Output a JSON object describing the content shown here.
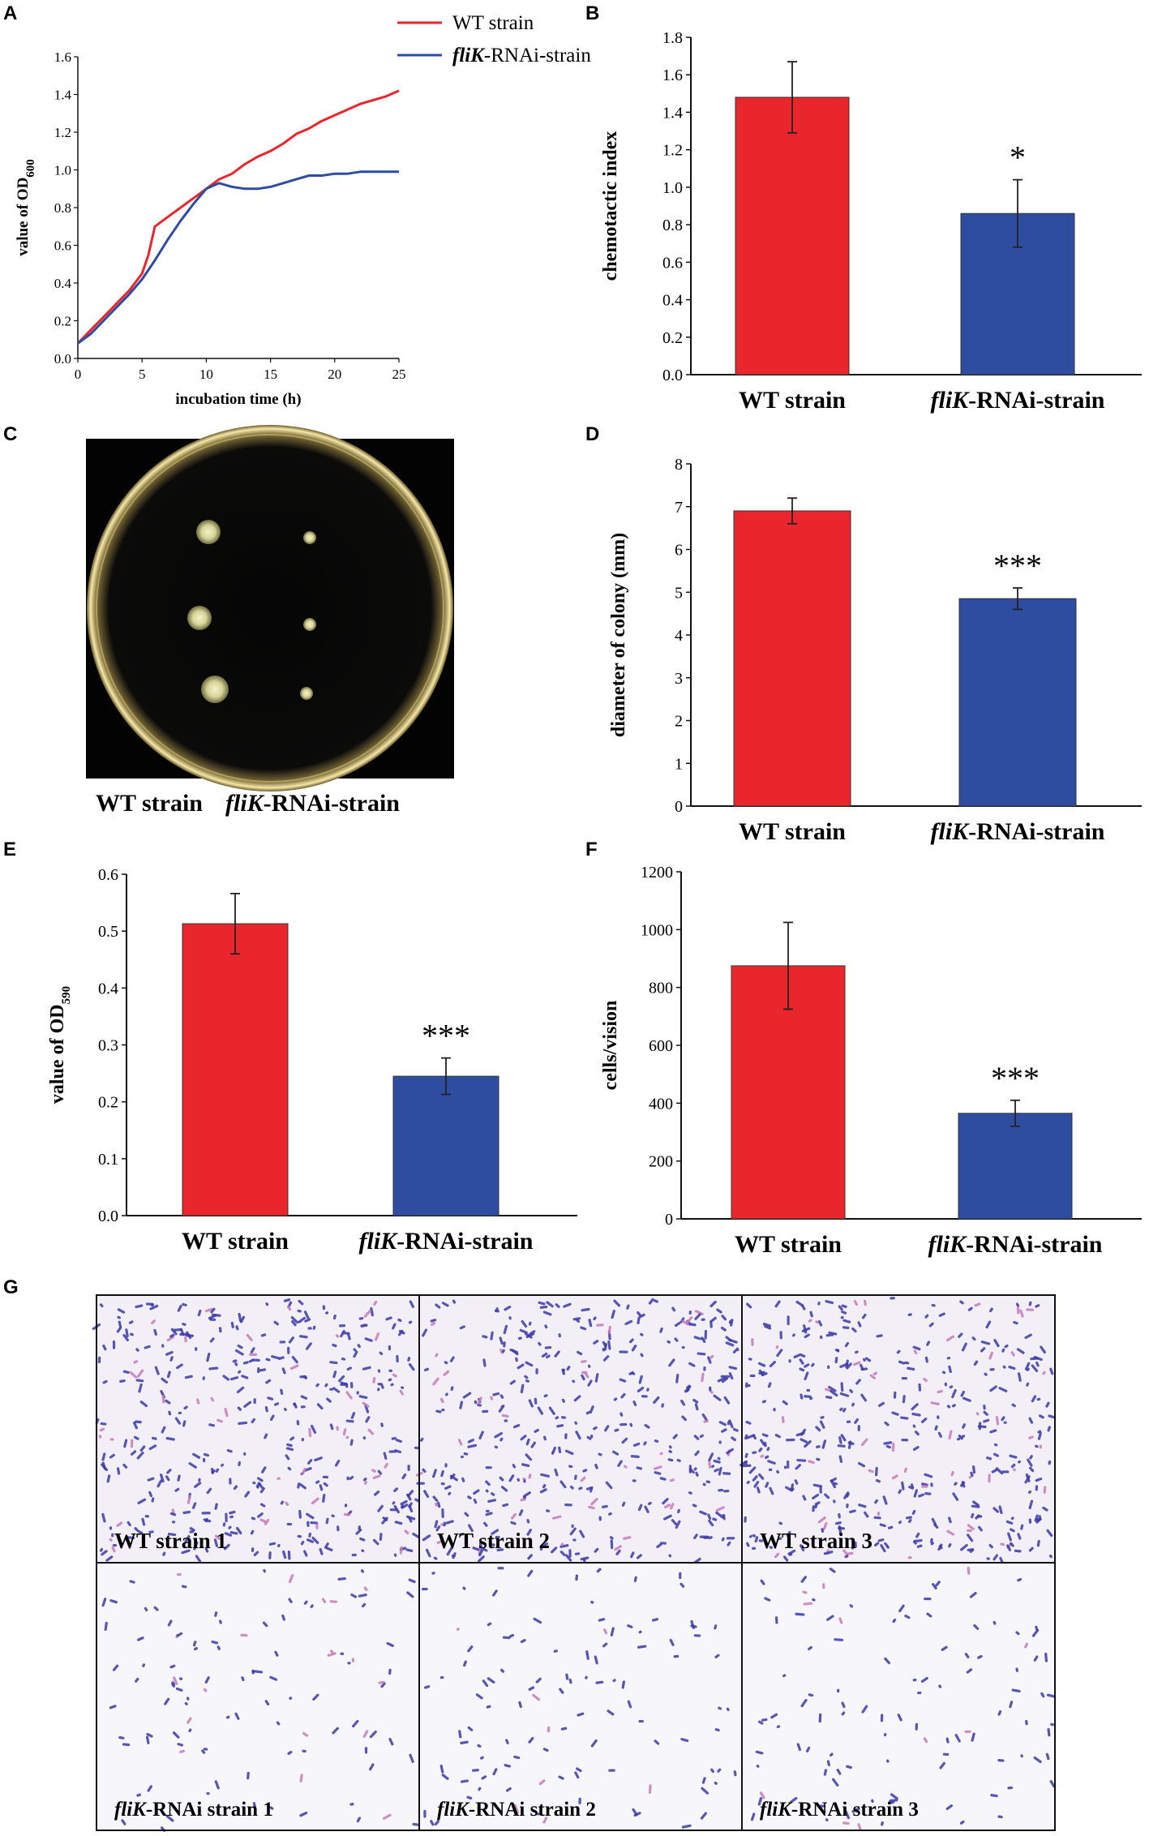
{
  "chart_data": [
    {
      "panel": "A",
      "type": "line",
      "xlabel": "incubation time (h)",
      "ylabel": "value of OD",
      "ylabel_sub": "600",
      "xlim": [
        0,
        25
      ],
      "ylim": [
        0,
        1.6
      ],
      "x_ticks": [
        "0",
        "5",
        "10",
        "15",
        "20",
        "25"
      ],
      "y_ticks": [
        "0.0",
        "0.2",
        "0.4",
        "0.6",
        "0.8",
        "1.0",
        "1.2",
        "1.4",
        "1.6"
      ],
      "legend_position": "top-right (outside plot)",
      "series": [
        {
          "name": "WT strain",
          "color": "#e8262b",
          "x": [
            0,
            1,
            2,
            3,
            4,
            5,
            5.5,
            6,
            7,
            8,
            9,
            10,
            11,
            12,
            13,
            14,
            15,
            16,
            17,
            18,
            19,
            20,
            21,
            22,
            23,
            24,
            25
          ],
          "y": [
            0.08,
            0.15,
            0.22,
            0.29,
            0.36,
            0.45,
            0.55,
            0.7,
            0.75,
            0.8,
            0.85,
            0.9,
            0.95,
            0.98,
            1.03,
            1.07,
            1.1,
            1.14,
            1.19,
            1.22,
            1.26,
            1.29,
            1.32,
            1.35,
            1.37,
            1.39,
            1.42
          ]
        },
        {
          "name": "fliK-RNAi-strain",
          "name_italic": "fliK",
          "name_rest": "-RNAi-strain",
          "color": "#2e4da0",
          "x": [
            0,
            1,
            2,
            3,
            4,
            5,
            6,
            7,
            8,
            9,
            10,
            11,
            12,
            13,
            14,
            15,
            16,
            17,
            18,
            19,
            20,
            21,
            22,
            23,
            24,
            25
          ],
          "y": [
            0.08,
            0.13,
            0.2,
            0.27,
            0.34,
            0.42,
            0.52,
            0.63,
            0.73,
            0.82,
            0.9,
            0.93,
            0.91,
            0.9,
            0.9,
            0.91,
            0.93,
            0.95,
            0.97,
            0.97,
            0.98,
            0.98,
            0.99,
            0.99,
            0.99,
            0.99
          ]
        }
      ]
    },
    {
      "panel": "B",
      "type": "bar",
      "ylabel": "chemotactic index",
      "ylim": [
        0,
        1.8
      ],
      "y_ticks": [
        "0.0",
        "0.2",
        "0.4",
        "0.6",
        "0.8",
        "1.0",
        "1.2",
        "1.4",
        "1.6",
        "1.8"
      ],
      "categories": [
        "WT strain",
        "fliK-RNAi-strain"
      ],
      "values": [
        1.48,
        0.86
      ],
      "errors": [
        0.19,
        0.18
      ],
      "significance": [
        "",
        "*"
      ]
    },
    {
      "panel": "D",
      "type": "bar",
      "ylabel": "diameter of colony (mm)",
      "ylim": [
        0,
        8
      ],
      "y_ticks": [
        "0",
        "1",
        "2",
        "3",
        "4",
        "5",
        "6",
        "7",
        "8"
      ],
      "categories": [
        "WT strain",
        "fliK-RNAi-strain"
      ],
      "values": [
        6.9,
        4.85
      ],
      "errors": [
        0.3,
        0.25
      ],
      "significance": [
        "",
        "***"
      ]
    },
    {
      "panel": "E",
      "type": "bar",
      "ylabel": "value of OD",
      "ylabel_sub": "590",
      "ylim": [
        0,
        0.6
      ],
      "y_ticks": [
        "0.0",
        "0.1",
        "0.2",
        "0.3",
        "0.4",
        "0.5",
        "0.6"
      ],
      "categories": [
        "WT strain",
        "fliK-RNAi-strain"
      ],
      "values": [
        0.513,
        0.245
      ],
      "errors": [
        0.053,
        0.032
      ],
      "significance": [
        "",
        "***"
      ]
    },
    {
      "panel": "F",
      "type": "bar",
      "ylabel": "cells/vision",
      "ylim": [
        0,
        1200
      ],
      "y_ticks": [
        "0",
        "200",
        "400",
        "600",
        "800",
        "1000",
        "1200"
      ],
      "categories": [
        "WT strain",
        "fliK-RNAi-strain"
      ],
      "values": [
        875,
        365
      ],
      "errors": [
        150,
        45
      ],
      "significance": [
        "",
        "***"
      ]
    }
  ],
  "colors": {
    "wt": "#e8262b",
    "flik": "#2e4da0",
    "cell_stain": "#3a3aa8",
    "cell_pink": "#c77bb8"
  },
  "panel_c": {
    "letter": "C",
    "caption_wt": "WT strain",
    "caption_flik_italic": "fliK",
    "caption_flik_rest": "-RNAi-strain"
  },
  "panel_g": {
    "letter": "G",
    "cells": [
      {
        "label": "WT strain 1",
        "density": "high"
      },
      {
        "label": "WT strain 2",
        "density": "high"
      },
      {
        "label": "WT strain 3",
        "density": "high"
      },
      {
        "label_italic": "fliK",
        "label_rest": "-RNAi strain 1",
        "density": "low"
      },
      {
        "label_italic": "fliK",
        "label_rest": "-RNAi strain 2",
        "density": "low"
      },
      {
        "label_italic": "fliK",
        "label_rest": "-RNAi strain 3",
        "density": "low"
      }
    ]
  }
}
